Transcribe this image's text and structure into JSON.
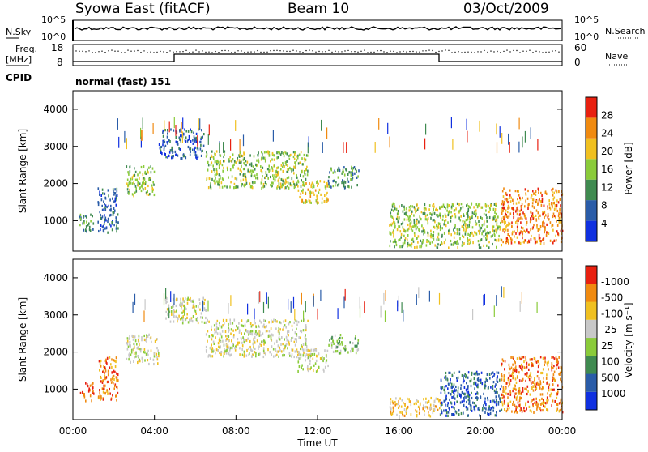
{
  "header": {
    "station": "Syowa East (fitACF)",
    "beam": "Beam 10",
    "date": "03/Oct/2009"
  },
  "noise_panel": {
    "left_label": "N.Sky",
    "right_label": "N.Search",
    "ticks_left": [
      "10^5",
      "10^0"
    ],
    "ticks_right": [
      "10^5",
      "10^0"
    ]
  },
  "freq_panel": {
    "left_label_1": "Freq.",
    "left_label_2": "[MHz]",
    "right_label": "Nave",
    "ticks_left": [
      "18",
      "8"
    ],
    "ticks_right": [
      "60",
      "0"
    ]
  },
  "cpid": {
    "label": "CPID",
    "value": "normal (fast) 151"
  },
  "chart_data": [
    {
      "type": "heatmap",
      "title": "",
      "ylabel": "Slant Range [km]",
      "ylim": [
        180,
        4500
      ],
      "yticks": [
        "1000",
        "2000",
        "3000",
        "4000"
      ],
      "colorbar_label": "Power [dB]",
      "colorbar_ticks": [
        "4",
        "8",
        "12",
        "16",
        "20",
        "24",
        "28"
      ],
      "colorbar_colors": [
        "#1030e0",
        "#2a5ca8",
        "#3f8a50",
        "#8acb3a",
        "#f0c020",
        "#f08a10",
        "#e82010"
      ],
      "regions": [
        {
          "t0": 0.3,
          "t1": 1.0,
          "r0": 700,
          "r1": 1200,
          "level": 2
        },
        {
          "t0": 1.2,
          "t1": 2.2,
          "r0": 700,
          "r1": 1900,
          "level": 1
        },
        {
          "t0": 2.6,
          "t1": 4.0,
          "r0": 1700,
          "r1": 2500,
          "level": 3
        },
        {
          "t0": 4.2,
          "t1": 6.4,
          "r0": 2700,
          "r1": 3500,
          "level": 1
        },
        {
          "t0": 6.5,
          "t1": 11.5,
          "r0": 1900,
          "r1": 2900,
          "level": 3
        },
        {
          "t0": 11.0,
          "t1": 12.5,
          "r0": 1500,
          "r1": 2100,
          "level": 4
        },
        {
          "t0": 12.5,
          "t1": 14.0,
          "r0": 1900,
          "r1": 2500,
          "level": 2
        },
        {
          "t0": 15.5,
          "t1": 21.0,
          "r0": 300,
          "r1": 1500,
          "level": 3
        },
        {
          "t0": 21.0,
          "t1": 24.0,
          "r0": 400,
          "r1": 1900,
          "level": 5
        }
      ]
    },
    {
      "type": "heatmap",
      "title": "",
      "xlabel": "Time UT",
      "ylabel": "Slant Range [km]",
      "xlim": [
        0,
        24
      ],
      "xticks": [
        "00:00",
        "04:00",
        "08:00",
        "12:00",
        "16:00",
        "20:00",
        "00:00"
      ],
      "ylim": [
        180,
        4500
      ],
      "yticks": [
        "1000",
        "2000",
        "3000",
        "4000"
      ],
      "colorbar_label": "Velocity [m s⁻¹]",
      "colorbar_ticks": [
        "1000",
        "500",
        "100",
        "25",
        "-25",
        "-100",
        "-500",
        "-1000"
      ],
      "colorbar_colors": [
        "#1030e0",
        "#2a5ca8",
        "#3f8a50",
        "#8acb3a",
        "#c8c8c8",
        "#f0c020",
        "#f08a10",
        "#e82010"
      ],
      "regions": [
        {
          "t0": 0.3,
          "t1": 1.0,
          "r0": 700,
          "r1": 1200,
          "level": 7
        },
        {
          "t0": 1.2,
          "t1": 2.2,
          "r0": 700,
          "r1": 1900,
          "level": 6
        },
        {
          "t0": 2.6,
          "t1": 4.2,
          "r0": 1700,
          "r1": 2500,
          "level": 4
        },
        {
          "t0": 4.5,
          "t1": 6.5,
          "r0": 2800,
          "r1": 3500,
          "level": 4
        },
        {
          "t0": 6.5,
          "t1": 11.5,
          "r0": 1900,
          "r1": 2900,
          "level": 4
        },
        {
          "t0": 11.0,
          "t1": 12.5,
          "r0": 1500,
          "r1": 2100,
          "level": 4
        },
        {
          "t0": 12.5,
          "t1": 14.0,
          "r0": 2000,
          "r1": 2500,
          "level": 3
        },
        {
          "t0": 15.5,
          "t1": 18.0,
          "r0": 300,
          "r1": 800,
          "level": 5
        },
        {
          "t0": 18.0,
          "t1": 21.0,
          "r0": 300,
          "r1": 1500,
          "level": 1
        },
        {
          "t0": 21.0,
          "t1": 24.0,
          "r0": 400,
          "r1": 1900,
          "level": 6
        }
      ]
    }
  ]
}
